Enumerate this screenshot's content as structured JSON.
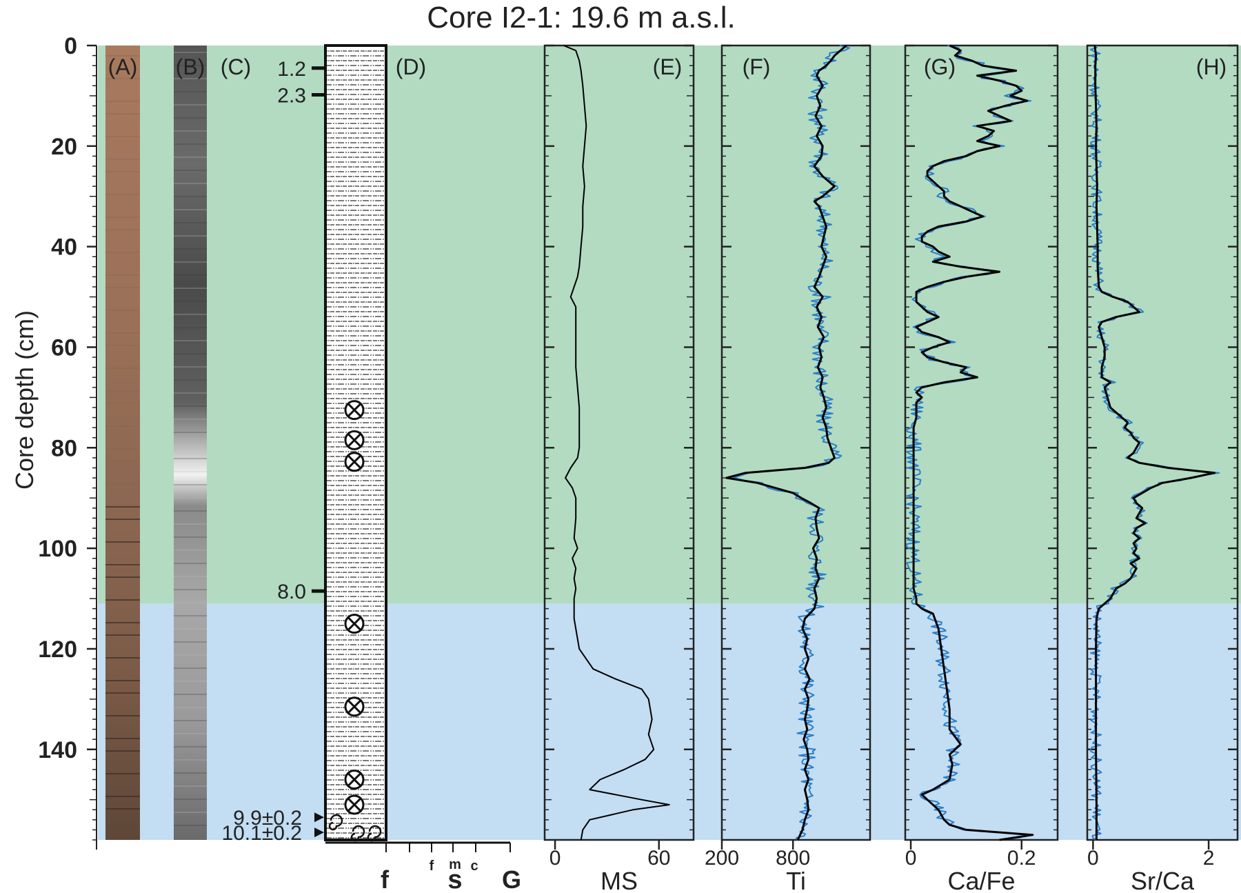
{
  "title": "Core I2-1: 19.6 m a.s.l.",
  "y_axis": {
    "label": "Core depth (cm)",
    "ticks": [
      "0",
      "20",
      "40",
      "60",
      "80",
      "100",
      "120",
      "140"
    ],
    "range": [
      0,
      158
    ]
  },
  "zones": [
    {
      "from": 0,
      "to": 111,
      "color": "#b2dbc2"
    },
    {
      "from": 111,
      "to": 158,
      "color": "#c3ddf3"
    }
  ],
  "colors": {
    "raw": "#2a7fc9",
    "smooth": "#000000"
  },
  "panel_labels": [
    "(A)",
    "(B)",
    "(C)",
    "(D)",
    "(E)",
    "(F)",
    "(G)",
    "(H)"
  ],
  "ages": [
    {
      "label": "1.2",
      "depth": 4.5
    },
    {
      "label": "2.3",
      "depth": 9.8
    },
    {
      "label": "8.0",
      "depth": 108.5
    },
    {
      "label": "9.9±0.2",
      "depth": 153.5
    },
    {
      "label": "10.1±0.2",
      "depth": 156.5
    }
  ],
  "grain_axis": {
    "labels": [
      {
        "text": "f",
        "role": "main"
      },
      {
        "text": "f",
        "role": "small"
      },
      {
        "text": "m",
        "role": "small"
      },
      {
        "text": "c",
        "role": "small"
      },
      {
        "text": "s",
        "role": "main"
      },
      {
        "text": "G",
        "role": "main"
      }
    ]
  },
  "fossil_depths": [
    72.5,
    78.5,
    82.8,
    115,
    131.5,
    146,
    151
  ],
  "chart_data": [
    {
      "type": "line",
      "panel": "(E)",
      "xlabel": "MS",
      "xticks": [
        "0",
        "60"
      ],
      "xlim": [
        -6,
        80
      ],
      "series": [
        {
          "depth": [
            0,
            1,
            3,
            5,
            8,
            12,
            16,
            20,
            24,
            28,
            32,
            36,
            40,
            44,
            46,
            48,
            50,
            52,
            56,
            60,
            64,
            68,
            72,
            76,
            80,
            82,
            84,
            86,
            88,
            90,
            94,
            98,
            100,
            102,
            104,
            106,
            108,
            110,
            112,
            114,
            116,
            120,
            124,
            126,
            128,
            130,
            134,
            137,
            140,
            142,
            144,
            146,
            148,
            150,
            151,
            152,
            154,
            156,
            158
          ],
          "values": [
            5,
            12,
            14,
            15,
            16,
            17,
            18,
            17,
            16,
            17,
            16,
            16,
            15,
            14,
            13,
            11,
            9,
            12,
            12,
            12,
            12,
            13,
            14,
            14,
            14,
            13,
            9,
            6,
            10,
            12,
            12,
            11,
            13,
            10,
            12,
            11,
            12,
            11,
            11,
            11,
            12,
            14,
            22,
            35,
            50,
            54,
            56,
            54,
            57,
            52,
            40,
            26,
            20,
            50,
            66,
            45,
            20,
            16,
            15
          ]
        }
      ]
    },
    {
      "type": "line",
      "panel": "(F)",
      "xlabel": "Ti",
      "xticks": [
        "200",
        "800"
      ],
      "xlim": [
        200,
        1450
      ],
      "series": [
        {
          "depth": [
            0,
            1,
            2,
            3,
            4,
            5,
            6,
            8,
            10,
            12,
            14,
            16,
            18,
            20,
            22,
            24,
            26,
            28,
            30,
            31,
            32,
            34,
            36,
            38,
            40,
            42,
            44,
            46,
            48,
            50,
            52,
            54,
            56,
            58,
            60,
            62,
            64,
            66,
            68,
            70,
            72,
            74,
            76,
            78,
            80,
            82,
            83,
            84,
            85,
            86,
            87,
            88,
            89,
            90,
            91,
            92,
            94,
            96,
            98,
            100,
            102,
            104,
            106,
            108,
            110,
            112,
            114,
            116,
            118,
            120,
            122,
            124,
            126,
            128,
            130,
            132,
            134,
            136,
            138,
            140,
            142,
            144,
            146,
            148,
            150,
            152,
            154,
            156,
            158
          ],
          "values": [
            1250,
            1200,
            1150,
            1120,
            1080,
            1020,
            1000,
            1050,
            1000,
            1030,
            990,
            1040,
            1000,
            1050,
            1040,
            980,
            1050,
            1150,
            1050,
            980,
            1020,
            1050,
            1080,
            1060,
            1040,
            1080,
            1050,
            1020,
            980,
            1050,
            1000,
            1040,
            1010,
            1060,
            1020,
            1040,
            1010,
            1050,
            1030,
            1060,
            1080,
            1050,
            1080,
            1090,
            1120,
            1150,
            1100,
            900,
            400,
            240,
            500,
            650,
            800,
            870,
            950,
            1020,
            990,
            1000,
            1020,
            970,
            1000,
            990,
            1020,
            980,
            1000,
            980,
            900,
            880,
            920,
            900,
            930,
            900,
            940,
            900,
            930,
            920,
            900,
            920,
            890,
            920,
            930,
            900,
            930,
            900,
            920,
            930,
            900,
            880,
            840
          ]
        }
      ]
    },
    {
      "type": "line",
      "panel": "(G)",
      "xlabel": "Ca/Fe",
      "xticks": [
        "0",
        "0.2"
      ],
      "xlim": [
        -0.01,
        0.265
      ],
      "series": [
        {
          "depth": [
            0,
            1,
            2,
            3,
            4,
            5,
            6,
            7,
            8,
            9,
            10,
            11,
            12,
            13,
            14,
            15,
            16,
            17,
            18,
            19,
            20,
            21,
            22,
            23,
            24,
            25,
            26,
            27,
            28,
            29,
            30,
            31,
            32,
            33,
            34,
            35,
            36,
            37,
            38,
            39,
            40,
            41,
            42,
            43,
            44,
            45,
            46,
            47,
            48,
            49,
            50,
            51,
            52,
            53,
            54,
            55,
            56,
            57,
            58,
            59,
            60,
            61,
            62,
            63,
            64,
            65,
            66,
            67,
            68,
            69,
            70,
            71,
            72,
            74,
            76,
            78,
            80,
            82,
            84,
            86,
            88,
            90,
            95,
            100,
            105,
            108,
            110,
            111,
            112,
            113,
            116,
            120,
            124,
            128,
            132,
            136,
            139,
            141,
            143,
            146,
            148,
            149,
            150,
            152,
            154,
            155,
            156,
            157,
            158
          ],
          "values": [
            0.07,
            0.09,
            0.08,
            0.11,
            0.13,
            0.19,
            0.12,
            0.16,
            0.19,
            0.2,
            0.18,
            0.21,
            0.17,
            0.14,
            0.16,
            0.18,
            0.12,
            0.15,
            0.14,
            0.12,
            0.16,
            0.12,
            0.1,
            0.06,
            0.04,
            0.03,
            0.03,
            0.04,
            0.05,
            0.06,
            0.06,
            0.07,
            0.09,
            0.11,
            0.13,
            0.1,
            0.05,
            0.03,
            0.02,
            0.02,
            0.04,
            0.05,
            0.07,
            0.04,
            0.09,
            0.16,
            0.1,
            0.06,
            0.03,
            0.01,
            0.01,
            0.01,
            0.02,
            0.03,
            0.05,
            0.03,
            0.01,
            0.02,
            0.05,
            0.07,
            0.04,
            0.02,
            0.03,
            0.06,
            0.1,
            0.09,
            0.12,
            0.06,
            0.02,
            0.01,
            0.02,
            0.01,
            0.01,
            0.01,
            0.005,
            0.005,
            0.005,
            0.005,
            0.005,
            0.005,
            0.005,
            0.005,
            0.005,
            0.005,
            0.005,
            0.005,
            0.01,
            0.01,
            0.02,
            0.04,
            0.05,
            0.055,
            0.06,
            0.065,
            0.07,
            0.07,
            0.09,
            0.07,
            0.075,
            0.07,
            0.04,
            0.02,
            0.03,
            0.05,
            0.06,
            0.07,
            0.1,
            0.22,
            0.16
          ]
        }
      ]
    },
    {
      "type": "line",
      "panel": "(H)",
      "xlabel": "Sr/Ca",
      "xticks": [
        "0",
        "2"
      ],
      "xlim": [
        -0.1,
        2.5
      ],
      "series": [
        {
          "depth": [
            0,
            2,
            4,
            8,
            12,
            16,
            20,
            24,
            28,
            32,
            36,
            40,
            44,
            48,
            49,
            50,
            51,
            52,
            53,
            54,
            55,
            56,
            58,
            60,
            62,
            64,
            66,
            67,
            68,
            70,
            72,
            73,
            74,
            75,
            76,
            77,
            78,
            79,
            80,
            81,
            82,
            83,
            84,
            85,
            86,
            87,
            88,
            89,
            90,
            91,
            92,
            93,
            94,
            95,
            96,
            97,
            98,
            99,
            100,
            101,
            102,
            103,
            104,
            105,
            106,
            107,
            108,
            109,
            110,
            111,
            112,
            114,
            120,
            130,
            140,
            150,
            158
          ],
          "values": [
            0.03,
            0.05,
            0.04,
            0.04,
            0.05,
            0.06,
            0.05,
            0.06,
            0.07,
            0.06,
            0.07,
            0.08,
            0.08,
            0.1,
            0.15,
            0.35,
            0.6,
            0.7,
            0.8,
            0.4,
            0.15,
            0.1,
            0.15,
            0.2,
            0.2,
            0.15,
            0.15,
            0.3,
            0.2,
            0.25,
            0.3,
            0.4,
            0.5,
            0.6,
            0.55,
            0.65,
            0.7,
            0.8,
            0.75,
            0.7,
            0.6,
            0.8,
            1.3,
            2.1,
            1.7,
            1.2,
            1.0,
            0.85,
            0.7,
            0.75,
            0.85,
            0.8,
            0.75,
            0.9,
            0.75,
            0.7,
            0.8,
            0.7,
            0.75,
            0.7,
            0.8,
            0.65,
            0.75,
            0.7,
            0.65,
            0.55,
            0.4,
            0.35,
            0.3,
            0.2,
            0.1,
            0.06,
            0.05,
            0.05,
            0.05,
            0.06,
            0.06
          ]
        }
      ]
    }
  ]
}
